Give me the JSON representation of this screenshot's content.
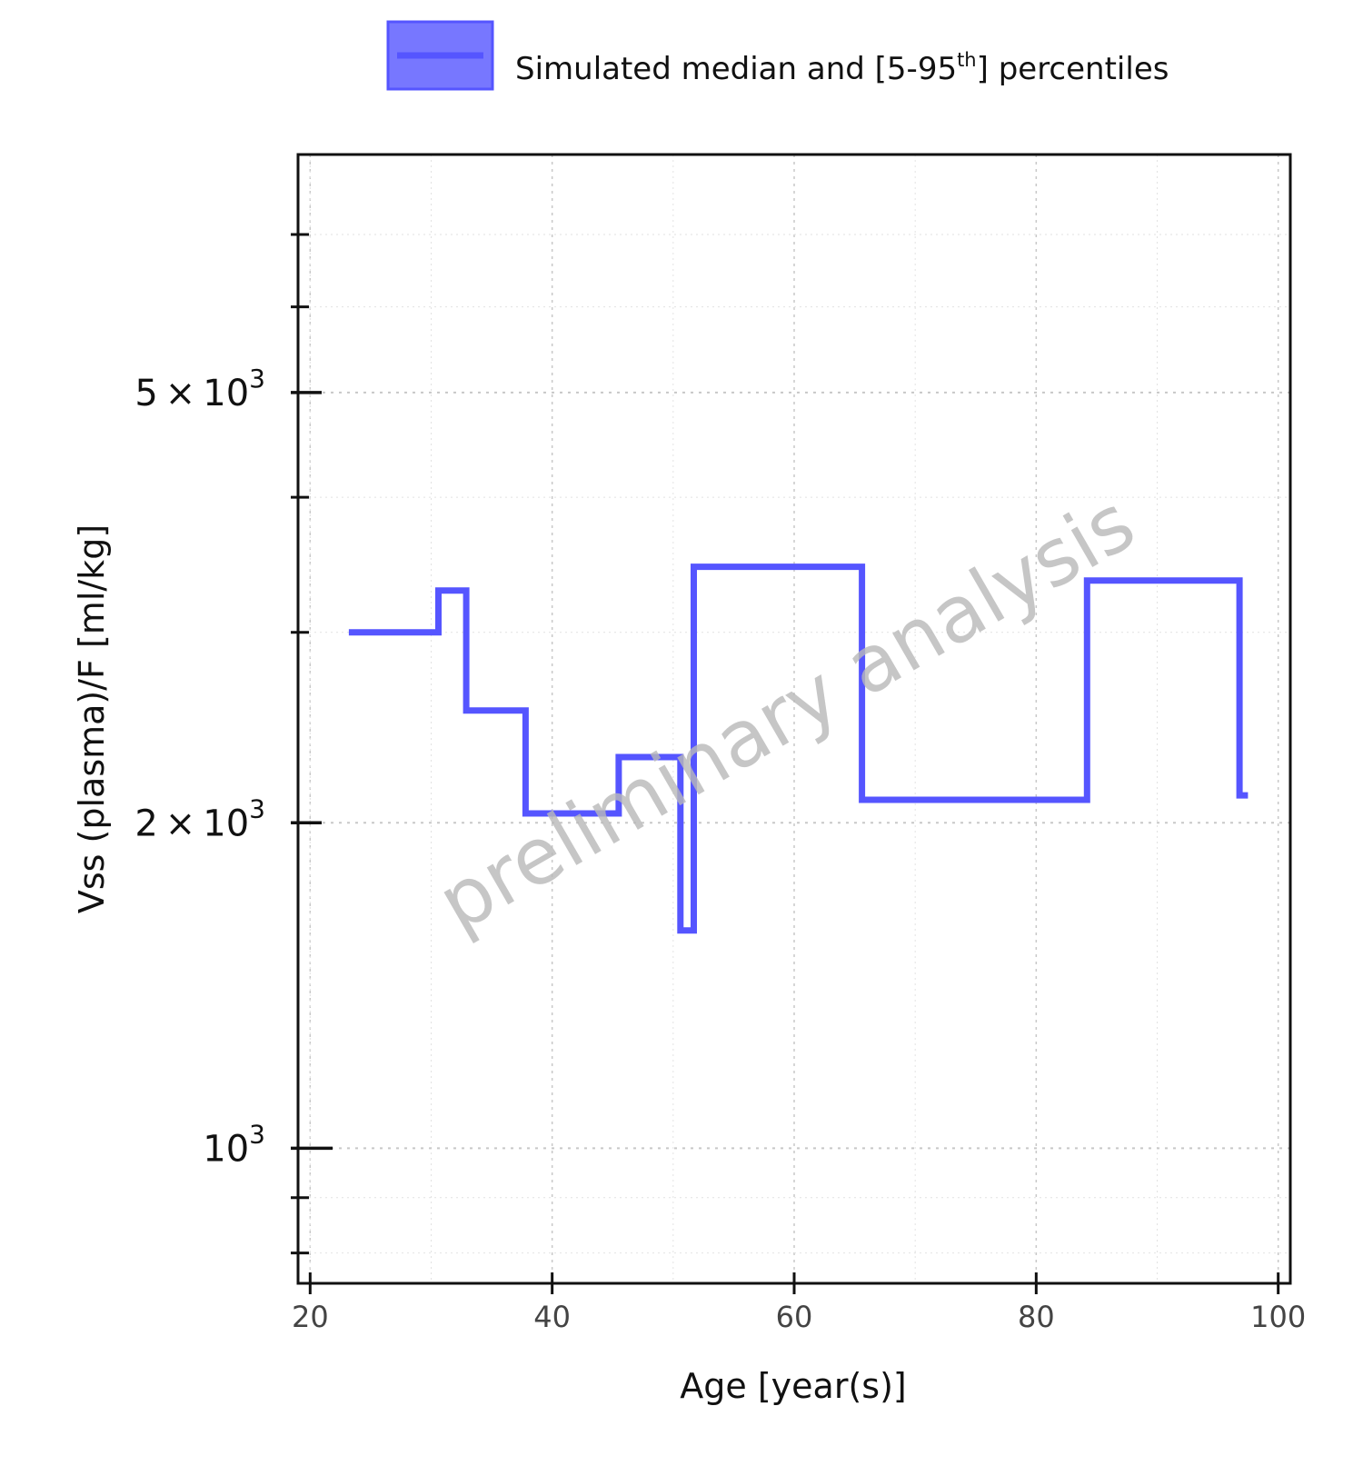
{
  "chart_data": {
    "type": "line",
    "legend": {
      "label": "Simulated median and [5-95",
      "label_sup": "th",
      "label_tail": "] percentiles",
      "placement": "top",
      "color": "#5555ff"
    },
    "watermark": "preliminary analysis",
    "xlabel": "Age [year(s)]",
    "ylabel": "Vss (plasma)/F [ml/kg]",
    "xlim": [
      19,
      101
    ],
    "ylim": [
      750,
      8300
    ],
    "y_scale": "log",
    "x_ticks": [
      20,
      40,
      60,
      80,
      100
    ],
    "x_tick_labels": [
      "20",
      "40",
      "60",
      "80",
      "100"
    ],
    "y_major_ticks": [
      {
        "value": 5000,
        "mantissa": "5",
        "times": "×",
        "base": "10",
        "exp": "3"
      },
      {
        "value": 2000,
        "mantissa": "2",
        "times": "×",
        "base": "10",
        "exp": "3"
      },
      {
        "value": 1000,
        "mantissa": "",
        "times": "",
        "base": "10",
        "exp": "3"
      }
    ],
    "y_minor_ticks": [
      800,
      900,
      3000,
      4000,
      6000,
      7000
    ],
    "grid": true,
    "series": [
      {
        "color": "#5555ff",
        "x": [
          23.2,
          30.6,
          30.6,
          32.9,
          32.9,
          37.8,
          37.8,
          45.5,
          45.5,
          50.6,
          50.6,
          51.7,
          51.7,
          65.6,
          65.6,
          84.2,
          84.2,
          96.8,
          96.8,
          97.5
        ],
        "y": [
          3000,
          3000,
          3280,
          3280,
          2540,
          2540,
          2040,
          2040,
          2300,
          2300,
          1590,
          1590,
          3450,
          3450,
          2100,
          2100,
          3350,
          3350,
          2120,
          2120
        ]
      }
    ]
  }
}
